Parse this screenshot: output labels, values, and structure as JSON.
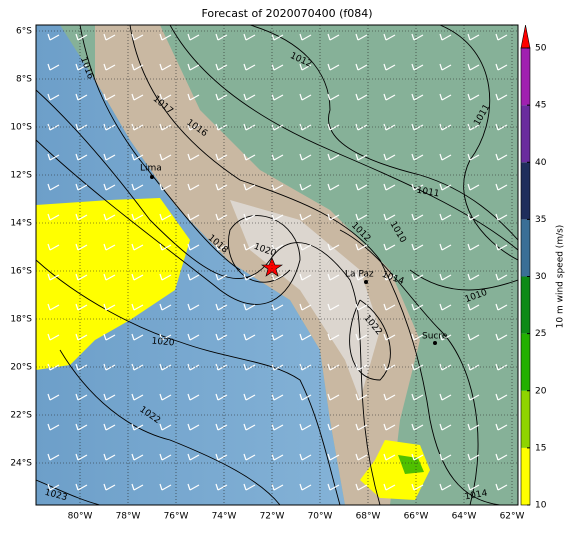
{
  "title": "Forecast of 2020070400 (f084)",
  "map": {
    "lon_labels": [
      "80°W",
      "78°W",
      "76°W",
      "74°W",
      "72°W",
      "70°W",
      "68°W",
      "66°W",
      "64°W",
      "62°W"
    ],
    "lat_labels": [
      "6°S",
      "8°S",
      "10°S",
      "12°S",
      "14°S",
      "16°S",
      "18°S",
      "20°S",
      "22°S",
      "24°S"
    ],
    "cities": [
      "Lima",
      "La Paz",
      "Sucre"
    ],
    "contour_labels": [
      "1016",
      "1017",
      "1016",
      "1012",
      "1011",
      "1011",
      "1010",
      "1018",
      "1020",
      "1022",
      "1023",
      "1012",
      "1014",
      "1010",
      "1022",
      "1014",
      "1020"
    ]
  },
  "colorbar": {
    "label": "10 m wind speed (m/s)",
    "lim": [
      10,
      50
    ],
    "ticks": [
      10,
      15,
      20,
      25,
      30,
      35,
      40,
      45,
      50
    ],
    "colors": [
      "#ffff00",
      "#8fd400",
      "#22b000",
      "#0d8a16",
      "#3a6f96",
      "#1f2e5c",
      "#6a2c9e",
      "#a020b0"
    ]
  }
}
